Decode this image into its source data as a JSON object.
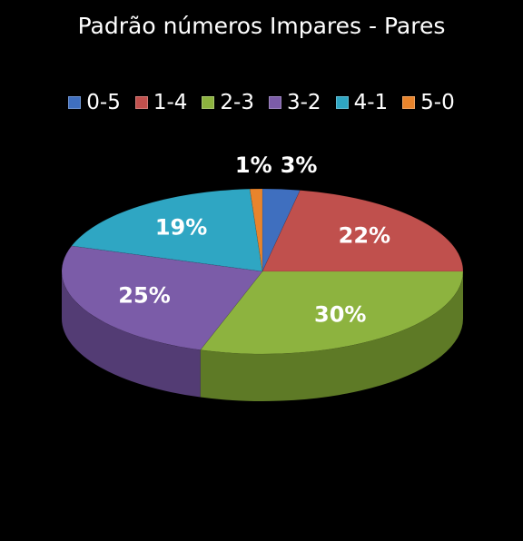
{
  "chart_data": {
    "type": "pie",
    "title": "Padrão números Impares - Pares",
    "legend_position": "top",
    "categories": [
      "0-5",
      "1-4",
      "2-3",
      "3-2",
      "4-1",
      "5-0"
    ],
    "values": [
      3,
      22,
      30,
      25,
      19,
      1
    ],
    "data_labels": [
      "3%",
      "22%",
      "30%",
      "25%",
      "19%",
      "1%"
    ],
    "colors": [
      "#3F6FBF",
      "#C0504D",
      "#8DB33F",
      "#7B5CA8",
      "#2FA6C3",
      "#E8842C"
    ],
    "side_colors": [
      "#2A4E8A",
      "#8A3533",
      "#5E7A26",
      "#533C74",
      "#1E7388",
      "#A65C1C"
    ]
  }
}
